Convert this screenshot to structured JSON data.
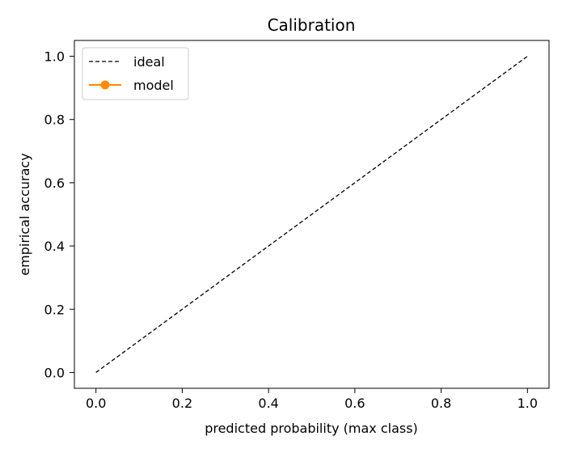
{
  "chart_data": {
    "type": "line",
    "title": "Calibration",
    "xlabel": "predicted probability (max class)",
    "ylabel": "empirical accuracy",
    "xlim": [
      -0.05,
      1.05
    ],
    "ylim": [
      -0.05,
      1.05
    ],
    "xticks": [
      0.0,
      0.2,
      0.4,
      0.6,
      0.8,
      1.0
    ],
    "yticks": [
      0.0,
      0.2,
      0.4,
      0.6,
      0.8,
      1.0
    ],
    "xtick_labels": [
      "0.0",
      "0.2",
      "0.4",
      "0.6",
      "0.8",
      "1.0"
    ],
    "ytick_labels": [
      "0.0",
      "0.2",
      "0.4",
      "0.6",
      "0.8",
      "1.0"
    ],
    "grid": false,
    "legend_position": "upper-left",
    "series": [
      {
        "name": "ideal",
        "style": "dashed",
        "color": "#000000",
        "x": [
          0.0,
          1.0
        ],
        "y": [
          0.0,
          1.0
        ]
      },
      {
        "name": "model",
        "style": "solid-marker",
        "color": "#ff8c00",
        "x": [],
        "y": []
      }
    ]
  }
}
